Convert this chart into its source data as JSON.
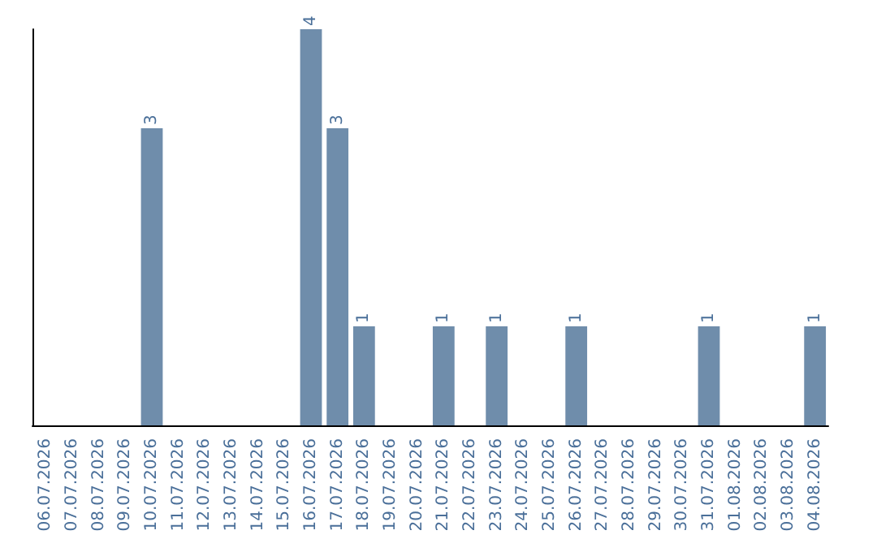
{
  "chart_data": {
    "type": "bar",
    "categories": [
      "06.07.2026",
      "07.07.2026",
      "08.07.2026",
      "09.07.2026",
      "10.07.2026",
      "11.07.2026",
      "12.07.2026",
      "13.07.2026",
      "14.07.2026",
      "15.07.2026",
      "16.07.2026",
      "17.07.2026",
      "18.07.2026",
      "19.07.2026",
      "20.07.2026",
      "21.07.2026",
      "22.07.2026",
      "23.07.2026",
      "24.07.2026",
      "25.07.2026",
      "26.07.2026",
      "27.07.2026",
      "28.07.2026",
      "29.07.2026",
      "30.07.2026",
      "31.07.2026",
      "01.08.2026",
      "02.08.2026",
      "03.08.2026",
      "04.08.2026"
    ],
    "values": [
      0,
      0,
      0,
      0,
      3,
      0,
      0,
      0,
      0,
      0,
      4,
      3,
      1,
      0,
      0,
      1,
      0,
      1,
      0,
      0,
      1,
      0,
      0,
      0,
      0,
      1,
      0,
      0,
      0,
      1
    ],
    "value_labels": [
      null,
      null,
      null,
      null,
      "3",
      null,
      null,
      null,
      null,
      null,
      "4",
      "3",
      "1",
      null,
      null,
      "1",
      null,
      "1",
      null,
      null,
      "1",
      null,
      null,
      null,
      null,
      "1",
      null,
      null,
      null,
      "1"
    ],
    "color": "#6f8dab",
    "grid": false
  }
}
